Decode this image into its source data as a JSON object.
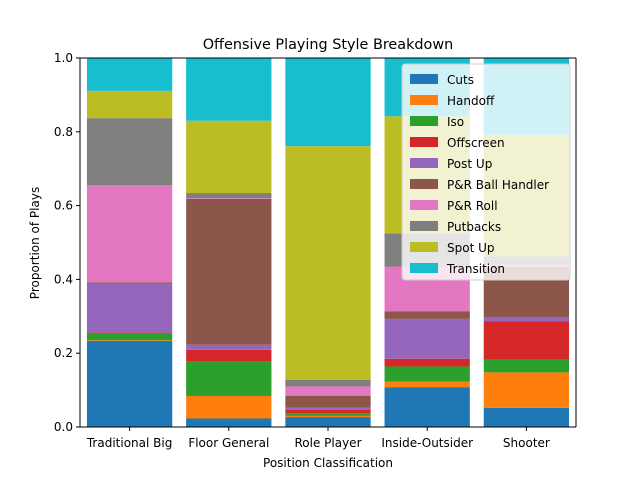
{
  "chart_data": {
    "type": "bar",
    "stacked": true,
    "title": "Offensive Playing Style Breakdown",
    "xlabel": "Position Classification",
    "ylabel": "Proportion of Plays",
    "ylim": [
      0,
      1.0
    ],
    "yticks": [
      "0.0",
      "0.2",
      "0.4",
      "0.6",
      "0.8",
      "1.0"
    ],
    "categories": [
      "Traditional Big",
      "Floor General",
      "Role Player",
      "Inside-Outsider",
      "Shooter"
    ],
    "legend_position": "top-right",
    "series": [
      {
        "name": "Cuts",
        "color": "#1f77b4",
        "values": [
          0.233,
          0.023,
          0.027,
          0.108,
          0.052
        ]
      },
      {
        "name": "Handoff",
        "color": "#ff7f0e",
        "values": [
          0.002,
          0.061,
          0.003,
          0.015,
          0.096
        ]
      },
      {
        "name": "Iso",
        "color": "#2ca02c",
        "values": [
          0.02,
          0.093,
          0.007,
          0.041,
          0.034
        ]
      },
      {
        "name": "Offscreen",
        "color": "#d62728",
        "values": [
          0.001,
          0.032,
          0.01,
          0.021,
          0.105
        ]
      },
      {
        "name": "Post Up",
        "color": "#9467bd",
        "values": [
          0.133,
          0.014,
          0.005,
          0.108,
          0.01
        ]
      },
      {
        "name": "P&R Ball Handler",
        "color": "#8c564b",
        "values": [
          0.003,
          0.395,
          0.033,
          0.02,
          0.137
        ]
      },
      {
        "name": "P&R Roll",
        "color": "#e377c2",
        "values": [
          0.263,
          0.002,
          0.025,
          0.122,
          0.006
        ]
      },
      {
        "name": "Putbacks",
        "color": "#7f7f7f",
        "values": [
          0.182,
          0.014,
          0.018,
          0.09,
          0.022
        ]
      },
      {
        "name": "Spot Up",
        "color": "#bcbd22",
        "values": [
          0.074,
          0.196,
          0.633,
          0.317,
          0.33
        ]
      },
      {
        "name": "Transition",
        "color": "#17becf",
        "values": [
          0.089,
          0.17,
          0.239,
          0.158,
          0.208
        ]
      }
    ]
  }
}
